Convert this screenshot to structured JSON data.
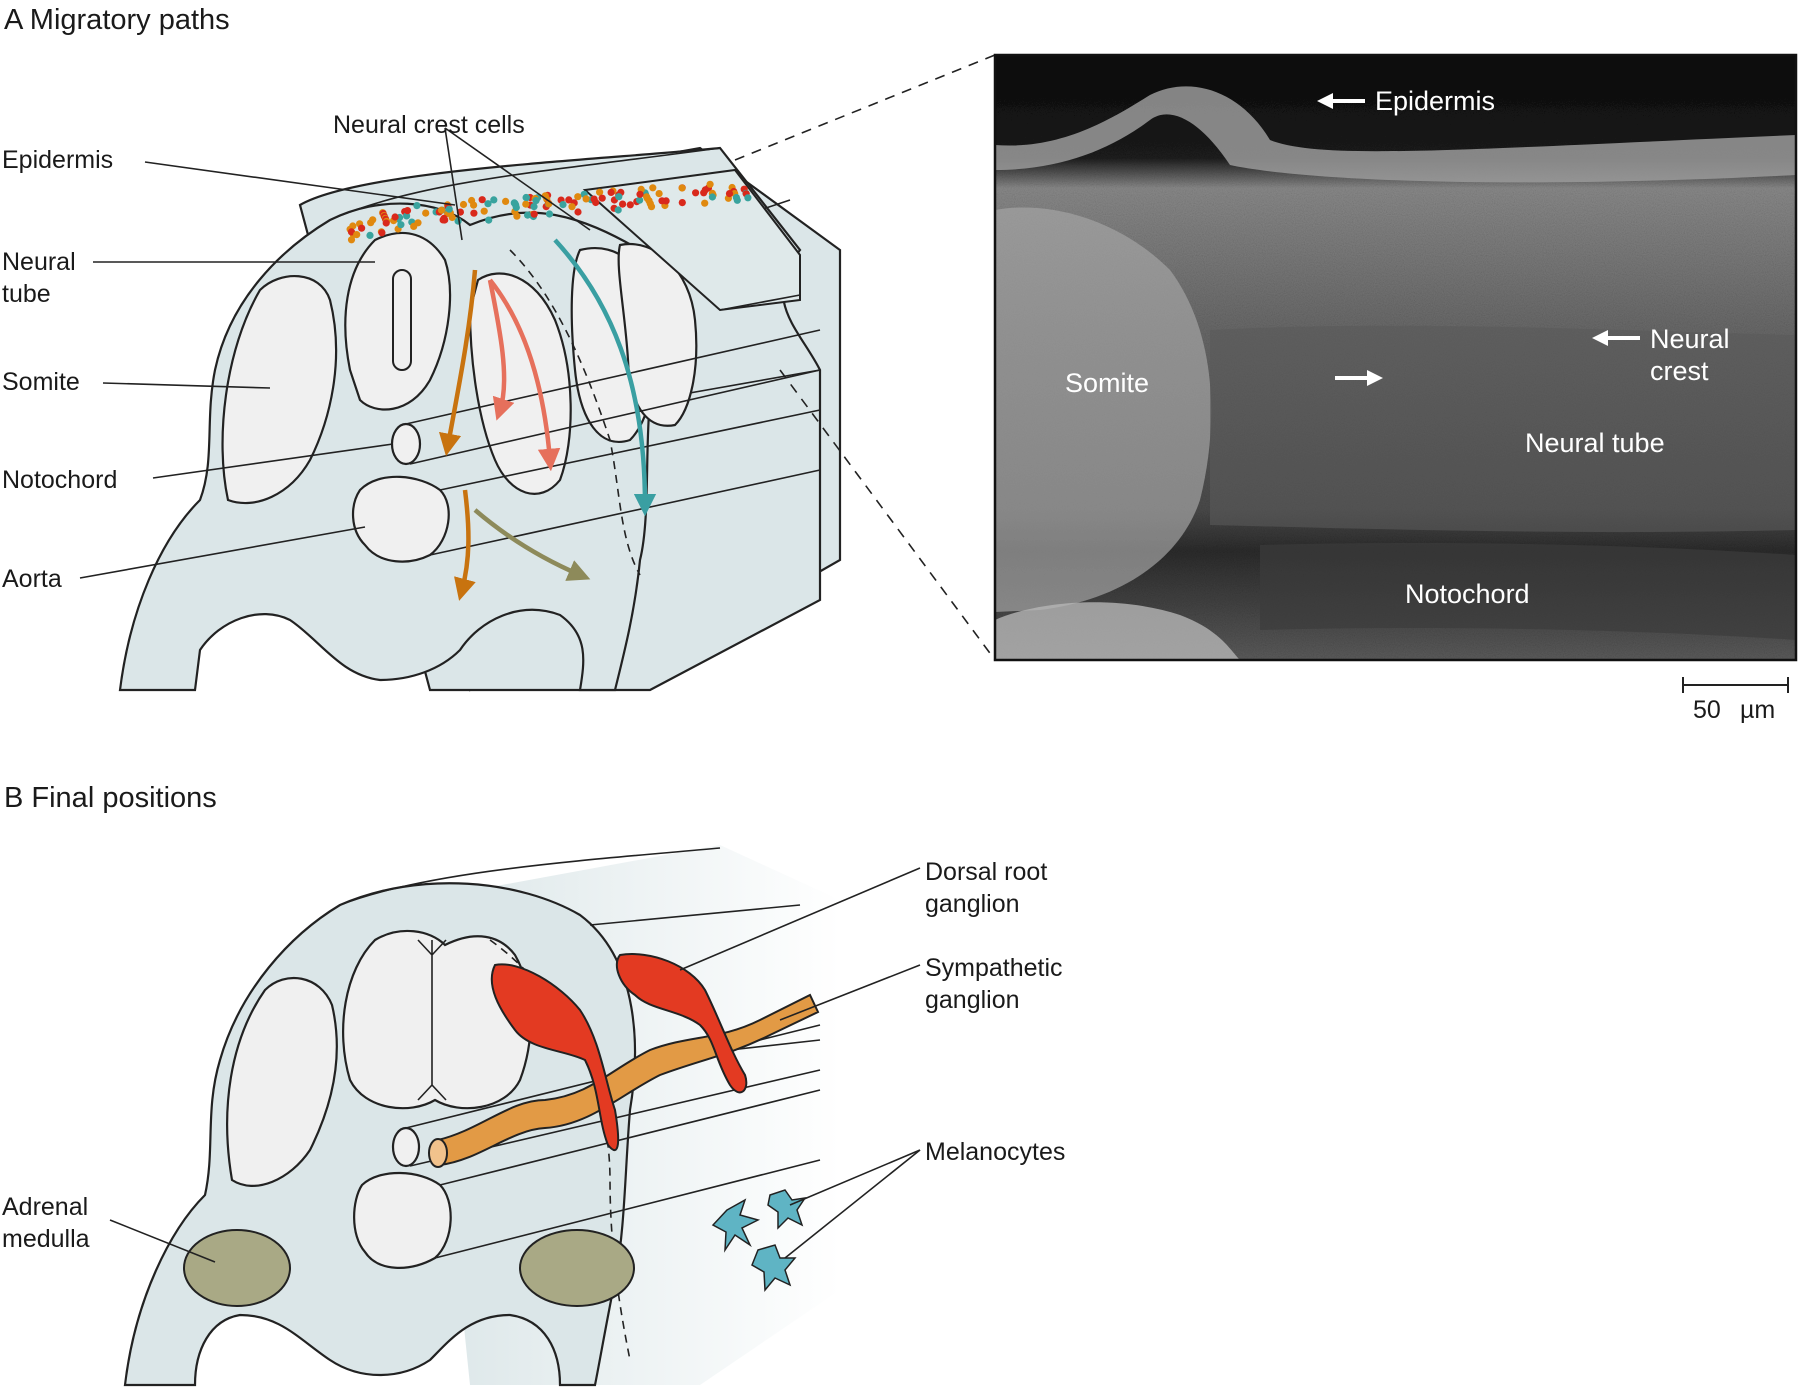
{
  "panelA": {
    "title": "A  Migratory paths",
    "labels": {
      "neural_crest_cells": "Neural crest cells",
      "epidermis": "Epidermis",
      "neural_tube_1": "Neural",
      "neural_tube_2": "tube",
      "somite": "Somite",
      "notochord": "Notochord",
      "aorta": "Aorta"
    },
    "micrograph": {
      "epidermis": "Epidermis",
      "neural_crest_1": "Neural",
      "neural_crest_2": "crest",
      "somite": "Somite",
      "neural_tube": "Neural tube",
      "notochord": "Notochord",
      "scale_value": "50",
      "scale_unit": "µm"
    },
    "colors": {
      "ventral_path": "#c8730f",
      "somite_path": "#e6705c",
      "dorsolateral_path": "#3a9fa2",
      "aorta_path": "#8d8a5a",
      "crest_red": "#d9291c",
      "crest_orange": "#e0890f",
      "crest_teal": "#39a39e"
    }
  },
  "panelB": {
    "title": "B  Final positions",
    "labels": {
      "drg_1": "Dorsal root",
      "drg_2": "ganglion",
      "symp_1": "Sympathetic",
      "symp_2": "ganglion",
      "melanocytes": "Melanocytes",
      "adrenal_1": "Adrenal",
      "adrenal_2": "medulla"
    },
    "colors": {
      "drg": "#e33a22",
      "sympathetic": "#e29a45",
      "melanocyte": "#5fb4c4",
      "adrenal": "#a9a985"
    }
  }
}
